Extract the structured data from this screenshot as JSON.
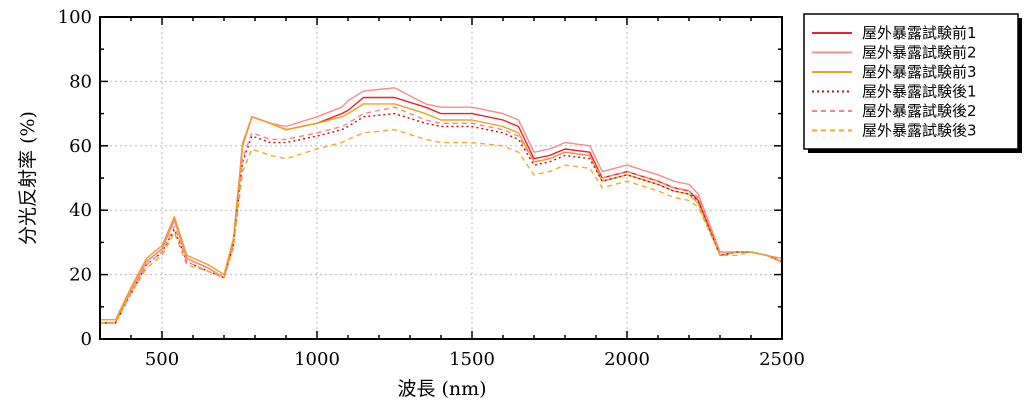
{
  "chart_data": {
    "type": "line",
    "xlabel": "波長 (nm)",
    "ylabel": "分光反射率 (%)",
    "xlim": [
      300,
      2500
    ],
    "ylim": [
      0,
      100
    ],
    "xticks": [
      500,
      1000,
      1500,
      2000,
      2500
    ],
    "yticks": [
      0,
      20,
      40,
      60,
      80,
      100
    ],
    "grid": true,
    "legend_position": "outside-top-right",
    "x": [
      300,
      350,
      400,
      450,
      500,
      540,
      580,
      650,
      700,
      730,
      760,
      790,
      850,
      900,
      1000,
      1080,
      1100,
      1150,
      1250,
      1350,
      1400,
      1500,
      1600,
      1650,
      1700,
      1750,
      1800,
      1880,
      1920,
      2000,
      2100,
      2150,
      2200,
      2230,
      2300,
      2350,
      2400,
      2450,
      2500
    ],
    "series": [
      {
        "name": "屋外暴露試験前1",
        "color": "#e8202a",
        "dash": "solid",
        "values": [
          5,
          5,
          15,
          24,
          28,
          37,
          25,
          22,
          19,
          30,
          60,
          69,
          67,
          65,
          67,
          70,
          71,
          75,
          75,
          72,
          70,
          70,
          68,
          66,
          56,
          57,
          59,
          58,
          50,
          52,
          49,
          47,
          46,
          43,
          26,
          27,
          27,
          26,
          24
        ]
      },
      {
        "name": "屋外暴露試験前2",
        "color": "#f58c8c",
        "dash": "solid",
        "values": [
          5,
          5,
          15,
          24,
          28,
          37,
          25,
          22,
          19,
          30,
          61,
          69,
          67,
          66,
          69,
          72,
          74,
          77,
          78,
          73,
          72,
          72,
          70,
          68,
          58,
          59,
          61,
          60,
          52,
          54,
          51,
          49,
          48,
          45,
          27,
          27,
          27,
          26,
          25
        ]
      },
      {
        "name": "屋外暴露試験前3",
        "color": "#f0a020",
        "dash": "solid",
        "values": [
          6,
          6,
          16,
          25,
          29,
          38,
          26,
          23,
          20,
          31,
          60,
          69,
          67,
          65,
          67,
          69,
          70,
          73,
          73,
          70,
          68,
          68,
          66,
          64,
          55,
          56,
          58,
          57,
          49,
          51,
          48,
          46,
          45,
          42,
          26,
          27,
          27,
          26,
          24
        ]
      },
      {
        "name": "屋外暴露試験後1",
        "color": "#c41010",
        "dash": "dotted",
        "values": [
          5,
          5,
          14,
          23,
          27,
          34,
          24,
          21,
          19,
          29,
          55,
          63,
          61,
          61,
          63,
          65,
          66,
          69,
          70,
          67,
          66,
          66,
          64,
          62,
          54,
          55,
          57,
          56,
          49,
          51,
          48,
          46,
          45,
          43,
          26,
          27,
          27,
          26,
          24
        ]
      },
      {
        "name": "屋外暴露試験後2",
        "color": "#f08888",
        "dash": "dashed",
        "values": [
          5,
          5,
          14,
          23,
          27,
          35,
          24,
          21,
          19,
          29,
          56,
          64,
          62,
          62,
          64,
          66,
          67,
          70,
          72,
          68,
          67,
          67,
          65,
          63,
          55,
          56,
          58,
          57,
          50,
          52,
          49,
          47,
          46,
          44,
          27,
          27,
          27,
          26,
          25
        ]
      },
      {
        "name": "屋外暴露試験後3",
        "color": "#f0a830",
        "dash": "dashed",
        "values": [
          5,
          5,
          14,
          22,
          26,
          33,
          23,
          21,
          19,
          28,
          52,
          59,
          57,
          56,
          59,
          61,
          62,
          64,
          65,
          62,
          61,
          61,
          60,
          58,
          51,
          52,
          54,
          53,
          47,
          49,
          46,
          44,
          43,
          41,
          26,
          26,
          27,
          26,
          24
        ]
      }
    ]
  }
}
